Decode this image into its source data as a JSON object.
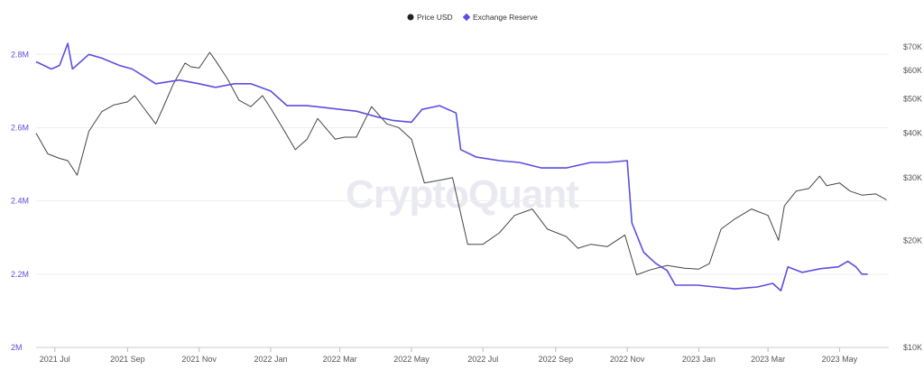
{
  "chart_data": {
    "type": "line",
    "legend": {
      "placement": "top-center",
      "entries": [
        {
          "name": "Price USD",
          "marker": "circle"
        },
        {
          "name": "Exchange Reserve",
          "marker": "diamond"
        }
      ]
    },
    "watermark": "CryptoQuant",
    "x_ticks": [
      "2021 Jul",
      "2021 Sep",
      "2021 Nov",
      "2022 Jan",
      "2022 Mar",
      "2022 May",
      "2022 Jul",
      "2022 Sep",
      "2022 Nov",
      "2023 Jan",
      "2023 Mar",
      "2023 May"
    ],
    "left_axis": {
      "ticks": [
        "2M",
        "2.2M",
        "2.4M",
        "2.6M",
        "2.8M"
      ],
      "range": [
        2000000,
        2850000
      ]
    },
    "right_axis": {
      "scale": "log",
      "ticks": [
        "$10K",
        "$20K",
        "$30K",
        "$40K",
        "$50K",
        "$60K",
        "$70K"
      ],
      "range": [
        10000,
        75000
      ]
    },
    "grid": true,
    "series": [
      {
        "name": "Price USD",
        "axis": "right",
        "color": "#444444",
        "points": [
          [
            "2021-06-15",
            40000
          ],
          [
            "2021-06-25",
            35000
          ],
          [
            "2021-07-05",
            34000
          ],
          [
            "2021-07-12",
            33500
          ],
          [
            "2021-07-20",
            30500
          ],
          [
            "2021-07-30",
            40500
          ],
          [
            "2021-08-10",
            46000
          ],
          [
            "2021-08-20",
            48000
          ],
          [
            "2021-09-01",
            49000
          ],
          [
            "2021-09-07",
            51000
          ],
          [
            "2021-09-15",
            47000
          ],
          [
            "2021-09-25",
            42500
          ],
          [
            "2021-10-01",
            47000
          ],
          [
            "2021-10-10",
            55000
          ],
          [
            "2021-10-20",
            63000
          ],
          [
            "2021-10-25",
            61500
          ],
          [
            "2021-11-01",
            61000
          ],
          [
            "2021-11-10",
            67500
          ],
          [
            "2021-11-15",
            64000
          ],
          [
            "2021-11-25",
            57000
          ],
          [
            "2021-12-05",
            49500
          ],
          [
            "2021-12-15",
            47500
          ],
          [
            "2021-12-25",
            51000
          ],
          [
            "2022-01-01",
            47000
          ],
          [
            "2022-01-10",
            42000
          ],
          [
            "2022-01-22",
            36000
          ],
          [
            "2022-02-01",
            38500
          ],
          [
            "2022-02-10",
            44000
          ],
          [
            "2022-02-25",
            38500
          ],
          [
            "2022-03-05",
            39000
          ],
          [
            "2022-03-15",
            39000
          ],
          [
            "2022-03-28",
            47500
          ],
          [
            "2022-04-10",
            42500
          ],
          [
            "2022-04-20",
            41500
          ],
          [
            "2022-05-01",
            38500
          ],
          [
            "2022-05-12",
            29000
          ],
          [
            "2022-05-25",
            29500
          ],
          [
            "2022-06-05",
            30000
          ],
          [
            "2022-06-18",
            19500
          ],
          [
            "2022-07-01",
            19500
          ],
          [
            "2022-07-15",
            21000
          ],
          [
            "2022-07-28",
            23500
          ],
          [
            "2022-08-12",
            24500
          ],
          [
            "2022-08-25",
            21500
          ],
          [
            "2022-09-10",
            20500
          ],
          [
            "2022-09-20",
            19000
          ],
          [
            "2022-10-01",
            19500
          ],
          [
            "2022-10-15",
            19200
          ],
          [
            "2022-10-30",
            20700
          ],
          [
            "2022-11-09",
            16000
          ],
          [
            "2022-11-20",
            16500
          ],
          [
            "2022-12-05",
            17000
          ],
          [
            "2022-12-20",
            16700
          ],
          [
            "2023-01-01",
            16600
          ],
          [
            "2023-01-10",
            17200
          ],
          [
            "2023-01-20",
            21500
          ],
          [
            "2023-02-01",
            23000
          ],
          [
            "2023-02-15",
            24500
          ],
          [
            "2023-03-01",
            23500
          ],
          [
            "2023-03-10",
            20000
          ],
          [
            "2023-03-15",
            25000
          ],
          [
            "2023-03-25",
            27500
          ],
          [
            "2023-04-05",
            28000
          ],
          [
            "2023-04-14",
            30300
          ],
          [
            "2023-04-20",
            28500
          ],
          [
            "2023-05-01",
            29000
          ],
          [
            "2023-05-10",
            27500
          ],
          [
            "2023-05-20",
            26800
          ],
          [
            "2023-06-01",
            27000
          ],
          [
            "2023-06-10",
            26000
          ]
        ]
      },
      {
        "name": "Exchange Reserve",
        "axis": "left",
        "color": "#5b4fe0",
        "points": [
          [
            "2021-06-15",
            2.78
          ],
          [
            "2021-06-28",
            2.76
          ],
          [
            "2021-07-05",
            2.77
          ],
          [
            "2021-07-12",
            2.83
          ],
          [
            "2021-07-16",
            2.76
          ],
          [
            "2021-07-30",
            2.8
          ],
          [
            "2021-08-10",
            2.79
          ],
          [
            "2021-08-25",
            2.77
          ],
          [
            "2021-09-05",
            2.76
          ],
          [
            "2021-09-15",
            2.74
          ],
          [
            "2021-09-25",
            2.72
          ],
          [
            "2021-10-15",
            2.73
          ],
          [
            "2021-11-01",
            2.72
          ],
          [
            "2021-11-15",
            2.71
          ],
          [
            "2021-12-01",
            2.72
          ],
          [
            "2021-12-15",
            2.72
          ],
          [
            "2022-01-01",
            2.7
          ],
          [
            "2022-01-15",
            2.66
          ],
          [
            "2022-02-01",
            2.66
          ],
          [
            "2022-02-15",
            2.655
          ],
          [
            "2022-03-01",
            2.65
          ],
          [
            "2022-03-15",
            2.645
          ],
          [
            "2022-04-01",
            2.63
          ],
          [
            "2022-04-15",
            2.62
          ],
          [
            "2022-05-01",
            2.615
          ],
          [
            "2022-05-10",
            2.65
          ],
          [
            "2022-05-25",
            2.66
          ],
          [
            "2022-06-08",
            2.64
          ],
          [
            "2022-06-12",
            2.54
          ],
          [
            "2022-06-25",
            2.52
          ],
          [
            "2022-07-15",
            2.51
          ],
          [
            "2022-08-01",
            2.505
          ],
          [
            "2022-08-20",
            2.49
          ],
          [
            "2022-09-10",
            2.49
          ],
          [
            "2022-10-01",
            2.505
          ],
          [
            "2022-10-15",
            2.505
          ],
          [
            "2022-11-01",
            2.51
          ],
          [
            "2022-11-05",
            2.34
          ],
          [
            "2022-11-15",
            2.26
          ],
          [
            "2022-11-25",
            2.23
          ],
          [
            "2022-12-05",
            2.21
          ],
          [
            "2022-12-12",
            2.17
          ],
          [
            "2022-12-31",
            2.17
          ],
          [
            "2023-01-15",
            2.165
          ],
          [
            "2023-02-01",
            2.16
          ],
          [
            "2023-02-20",
            2.165
          ],
          [
            "2023-03-05",
            2.175
          ],
          [
            "2023-03-12",
            2.155
          ],
          [
            "2023-03-18",
            2.22
          ],
          [
            "2023-03-30",
            2.205
          ],
          [
            "2023-04-15",
            2.215
          ],
          [
            "2023-04-30",
            2.22
          ],
          [
            "2023-05-08",
            2.235
          ],
          [
            "2023-05-15",
            2.22
          ],
          [
            "2023-05-20",
            2.2
          ],
          [
            "2023-05-25",
            2.2
          ]
        ]
      }
    ]
  }
}
